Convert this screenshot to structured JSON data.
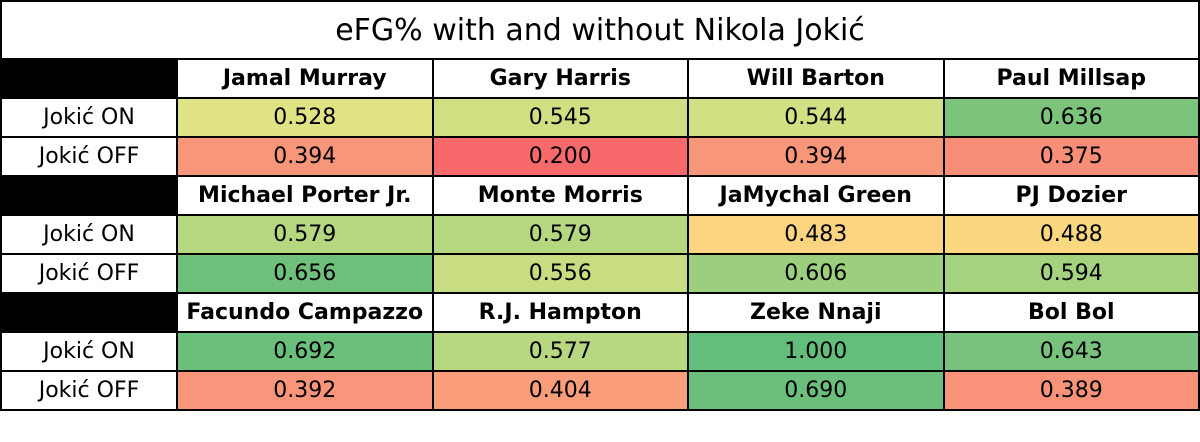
{
  "table": {
    "title": "eFG% with and without Nikola Jokić",
    "blocks": [
      {
        "players": [
          "Jamal Murray",
          "Gary Harris",
          "Will Barton",
          "Paul Millsap"
        ],
        "rows": [
          {
            "label": "Jokić ON",
            "cells": [
              {
                "value": "0.528",
                "color": "#e0e383"
              },
              {
                "value": "0.545",
                "color": "#cfe082"
              },
              {
                "value": "0.544",
                "color": "#d0e082"
              },
              {
                "value": "0.636",
                "color": "#7cc47c"
              }
            ]
          },
          {
            "label": "Jokić OFF",
            "cells": [
              {
                "value": "0.394",
                "color": "#f8967a"
              },
              {
                "value": "0.200",
                "color": "#f8696b"
              },
              {
                "value": "0.394",
                "color": "#f8967a"
              },
              {
                "value": "0.375",
                "color": "#f88e78"
              }
            ]
          }
        ]
      },
      {
        "players": [
          "Michael Porter Jr.",
          "Monte Morris",
          "JaMychal Green",
          "PJ Dozier"
        ],
        "rows": [
          {
            "label": "Jokić ON",
            "cells": [
              {
                "value": "0.579",
                "color": "#b5d780"
              },
              {
                "value": "0.579",
                "color": "#b5d780"
              },
              {
                "value": "0.483",
                "color": "#fdd47f"
              },
              {
                "value": "0.488",
                "color": "#fbd880"
              }
            ]
          },
          {
            "label": "Jokić OFF",
            "cells": [
              {
                "value": "0.656",
                "color": "#6fc07b"
              },
              {
                "value": "0.556",
                "color": "#c8dd81"
              },
              {
                "value": "0.606",
                "color": "#9bcf7e"
              },
              {
                "value": "0.594",
                "color": "#a5d27f"
              }
            ]
          }
        ]
      },
      {
        "players": [
          "Facundo Campazzo",
          "R.J. Hampton",
          "Zeke Nnaji",
          "Bol Bol"
        ],
        "rows": [
          {
            "label": "Jokić ON",
            "cells": [
              {
                "value": "0.692",
                "color": "#6abf7b"
              },
              {
                "value": "0.577",
                "color": "#b7d780"
              },
              {
                "value": "1.000",
                "color": "#63be7b"
              },
              {
                "value": "0.643",
                "color": "#77c27c"
              }
            ]
          },
          {
            "label": "Jokić OFF",
            "cells": [
              {
                "value": "0.392",
                "color": "#f8957a"
              },
              {
                "value": "0.404",
                "color": "#f99d7b"
              },
              {
                "value": "0.690",
                "color": "#6bbf7b"
              },
              {
                "value": "0.389",
                "color": "#f8937a"
              }
            ]
          }
        ]
      }
    ]
  }
}
